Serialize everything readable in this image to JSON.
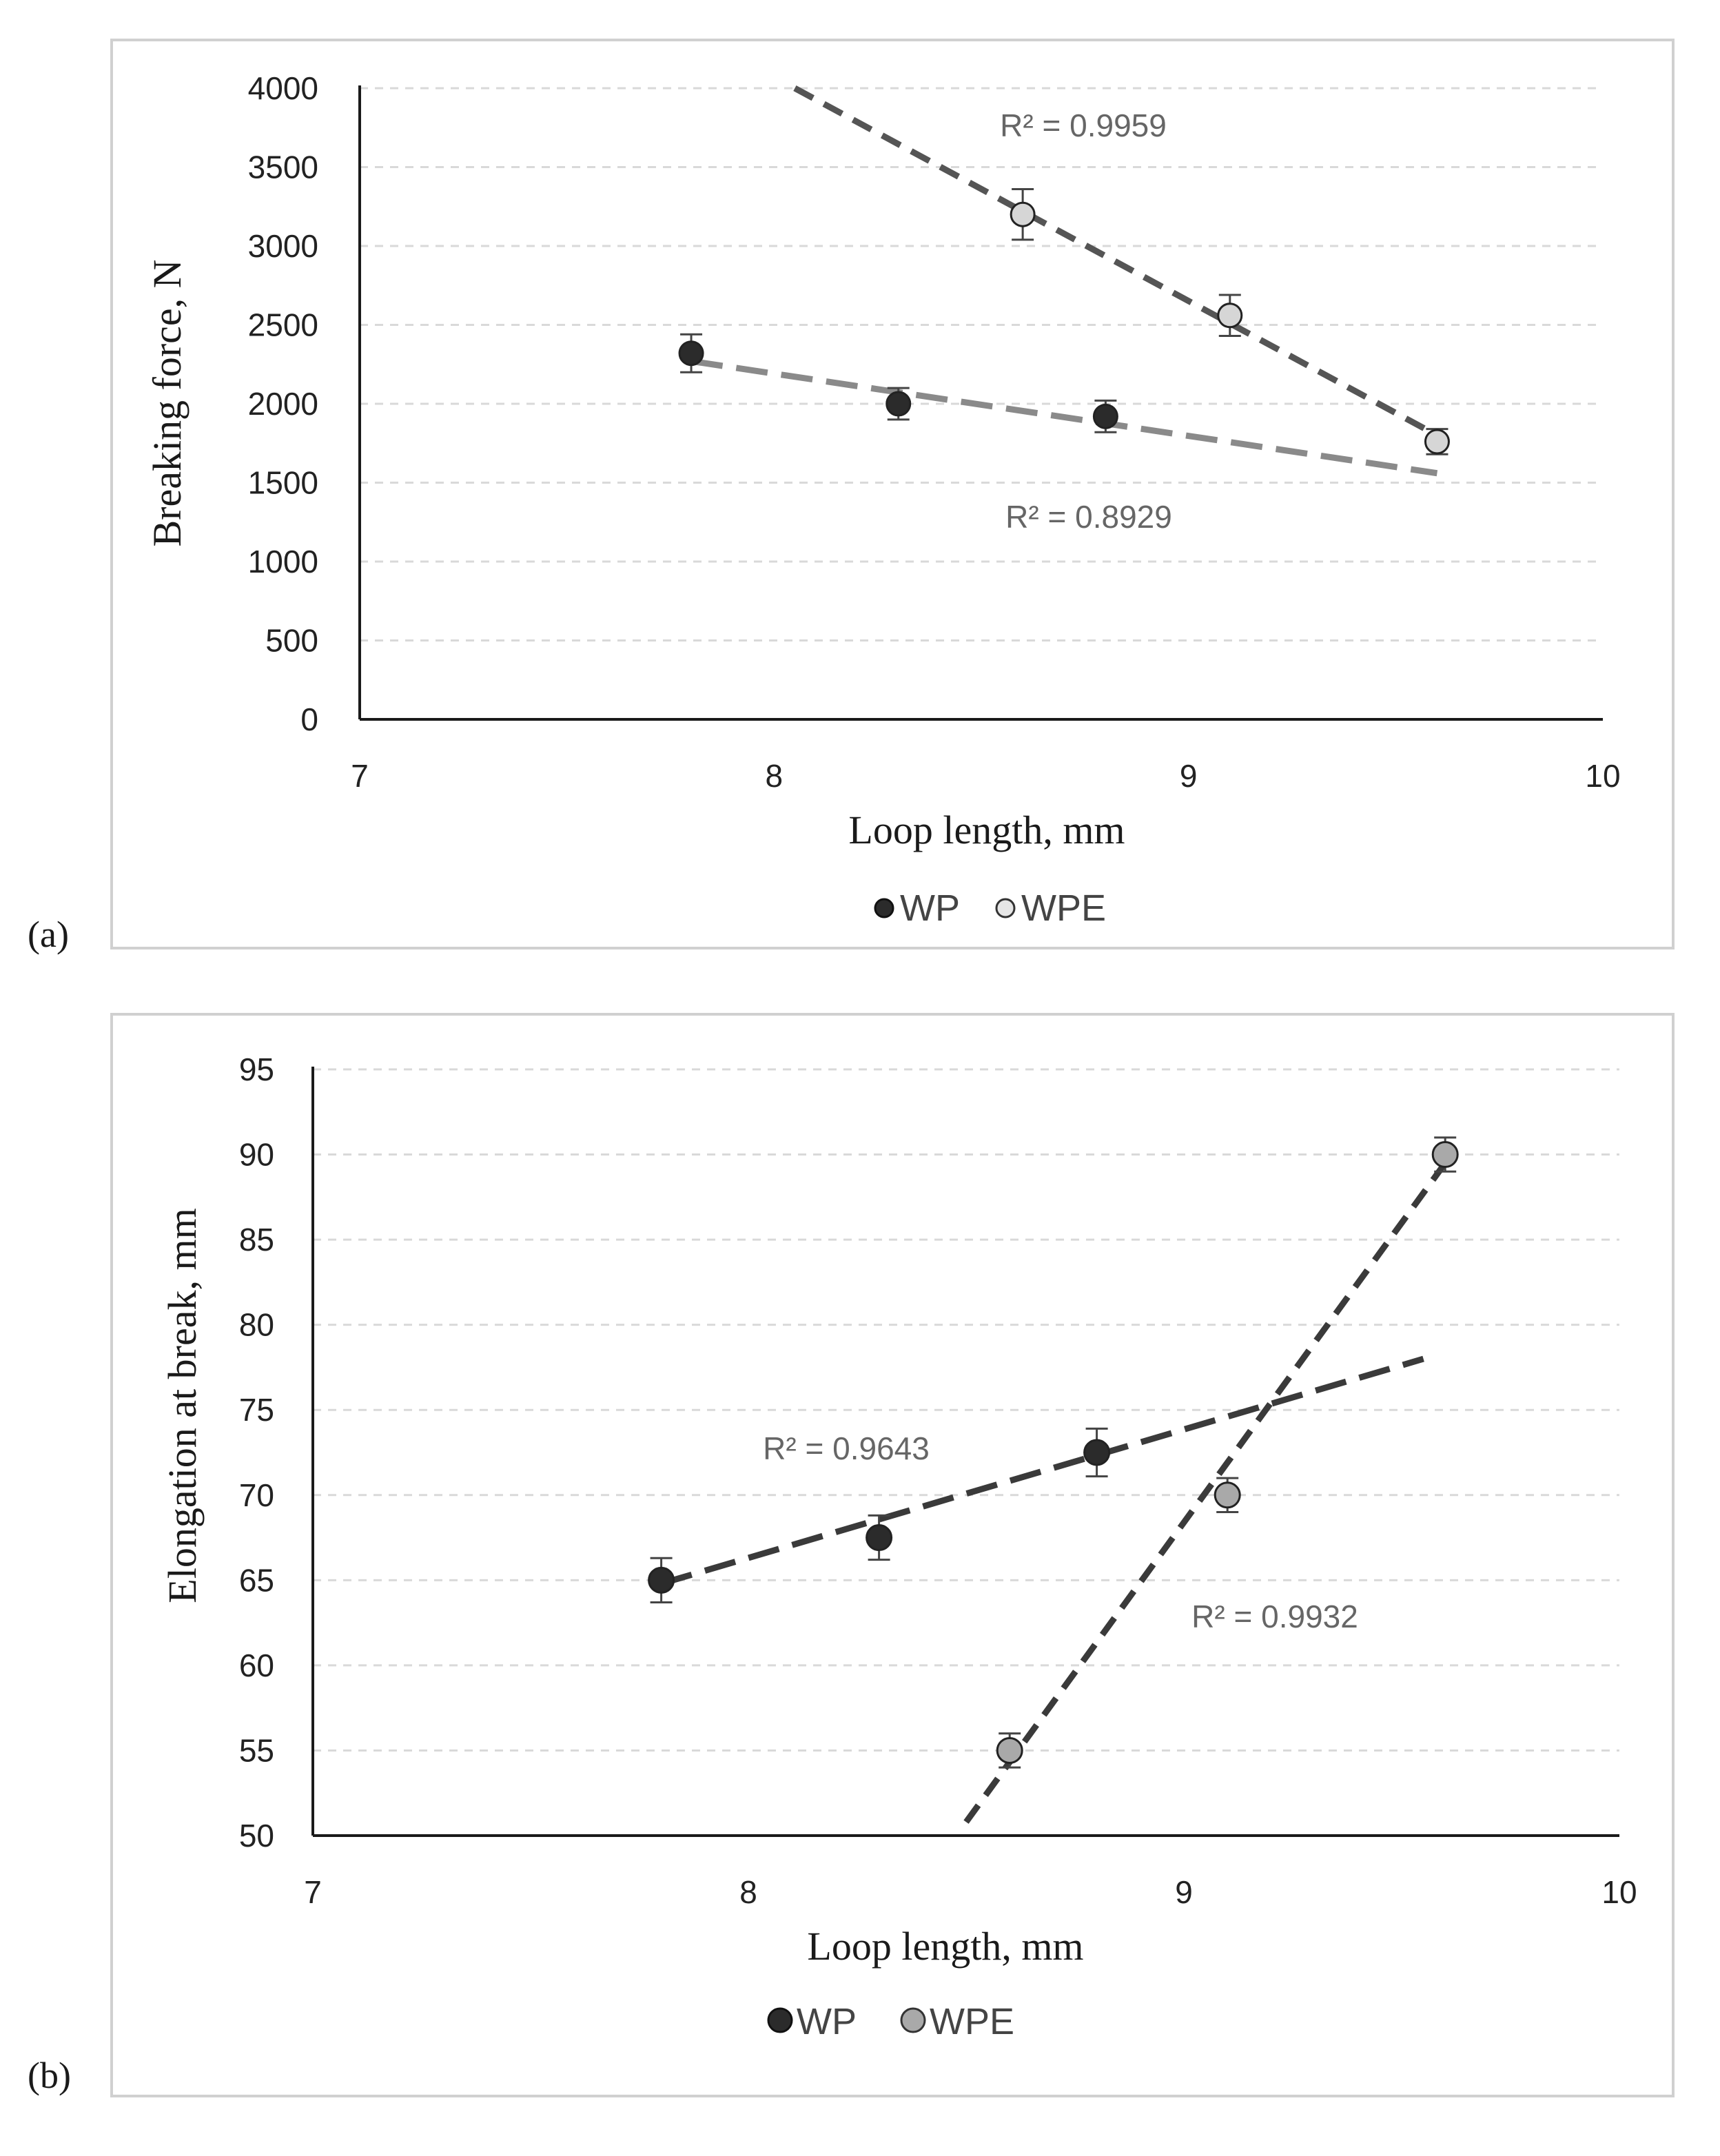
{
  "chart_data": [
    {
      "type": "scatter",
      "panel_label": "(a)",
      "xlabel": "Loop length, mm",
      "ylabel": "Breaking force, N",
      "xlim": [
        7,
        10
      ],
      "ylim": [
        0,
        4000
      ],
      "xticks": [
        7,
        8,
        9,
        10
      ],
      "yticks": [
        0,
        500,
        1000,
        1500,
        2000,
        2500,
        3000,
        3500,
        4000
      ],
      "grid": true,
      "legend_position": "bottom",
      "series": [
        {
          "name": "WP",
          "marker_color": "#2b2b2b",
          "points": [
            {
              "x": 7.8,
              "y": 2320,
              "err": 120
            },
            {
              "x": 8.3,
              "y": 2000,
              "err": 100
            },
            {
              "x": 8.8,
              "y": 1920,
              "err": 100
            }
          ],
          "trendline": {
            "x": [
              7.8,
              9.6
            ],
            "y": [
              2270,
              1560
            ],
            "style": "long-dash",
            "color": "#8a8a8a"
          },
          "r2_label": "R² = 0.8929"
        },
        {
          "name": "WPE",
          "marker_color": "#d6d6d6",
          "points": [
            {
              "x": 8.6,
              "y": 3200,
              "err": 160
            },
            {
              "x": 9.1,
              "y": 2560,
              "err": 130
            },
            {
              "x": 9.6,
              "y": 1760,
              "err": 80
            }
          ],
          "trendline": {
            "x": [
              8.05,
              9.6
            ],
            "y": [
              4000,
              1800
            ],
            "style": "dash",
            "color": "#555555"
          },
          "r2_label": "R² = 0.9959"
        }
      ]
    },
    {
      "type": "scatter",
      "panel_label": "(b)",
      "xlabel": "Loop length, mm",
      "ylabel": "Elongation at break, mm",
      "xlim": [
        7,
        10
      ],
      "ylim": [
        50,
        95
      ],
      "xticks": [
        7,
        8,
        9,
        10
      ],
      "yticks": [
        50,
        55,
        60,
        65,
        70,
        75,
        80,
        85,
        90,
        95
      ],
      "grid": true,
      "legend_position": "bottom",
      "series": [
        {
          "name": "WP",
          "marker_color": "#2b2b2b",
          "points": [
            {
              "x": 7.8,
              "y": 65,
              "err": 1.3
            },
            {
              "x": 8.3,
              "y": 67.5,
              "err": 1.3
            },
            {
              "x": 8.8,
              "y": 72.5,
              "err": 1.4
            }
          ],
          "trendline": {
            "x": [
              7.8,
              9.55
            ],
            "y": [
              64.8,
              78
            ],
            "style": "long-dash",
            "color": "#3a3a3a"
          },
          "r2_label": "R² = 0.9643"
        },
        {
          "name": "WPE",
          "marker_color": "#a9a9a9",
          "points": [
            {
              "x": 8.6,
              "y": 55,
              "err": 1.0
            },
            {
              "x": 9.1,
              "y": 70,
              "err": 1.0
            },
            {
              "x": 9.6,
              "y": 90,
              "err": 1.0
            }
          ],
          "trendline": {
            "x": [
              8.5,
              9.6
            ],
            "y": [
              50.8,
              89.5
            ],
            "style": "dash",
            "color": "#3a3a3a"
          },
          "r2_label": "R² = 0.9932"
        }
      ]
    }
  ]
}
